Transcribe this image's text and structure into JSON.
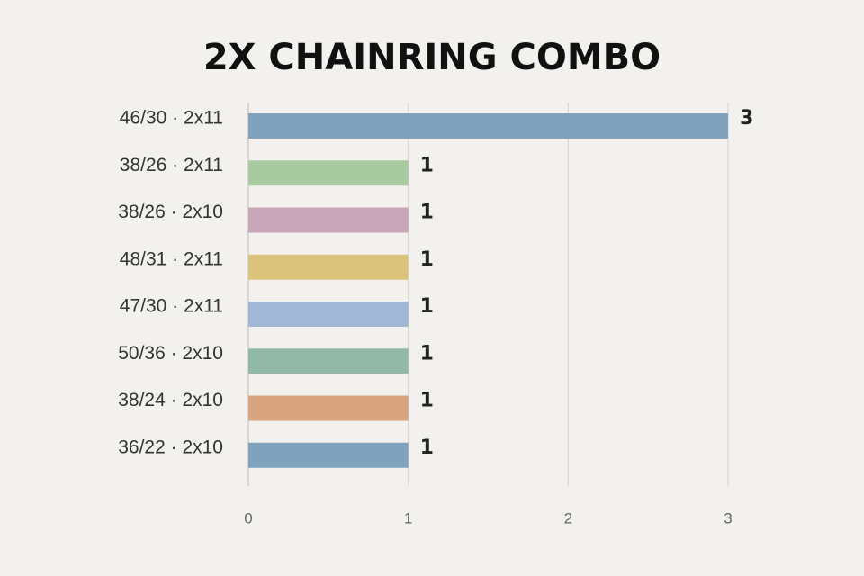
{
  "chart_data": {
    "type": "bar",
    "orientation": "horizontal",
    "title": "2X CHAINRING COMBO",
    "categories": [
      "46/30 · 2x11",
      "38/26 · 2x11",
      "38/26 · 2x10",
      "48/31 · 2x11",
      "47/30 · 2x11",
      "50/36 · 2x10",
      "38/24 · 2x10",
      "36/22 · 2x10"
    ],
    "values": [
      3,
      1,
      1,
      1,
      1,
      1,
      1,
      1
    ],
    "colors": [
      "#7fa2bd",
      "#a9c9a0",
      "#c9a6b7",
      "#dbc37c",
      "#a0b8d6",
      "#91b8a8",
      "#d9a37f",
      "#7fa2bd"
    ],
    "xlim": [
      0,
      3
    ],
    "xticks": [
      0,
      1,
      2,
      3
    ],
    "grid": true
  }
}
